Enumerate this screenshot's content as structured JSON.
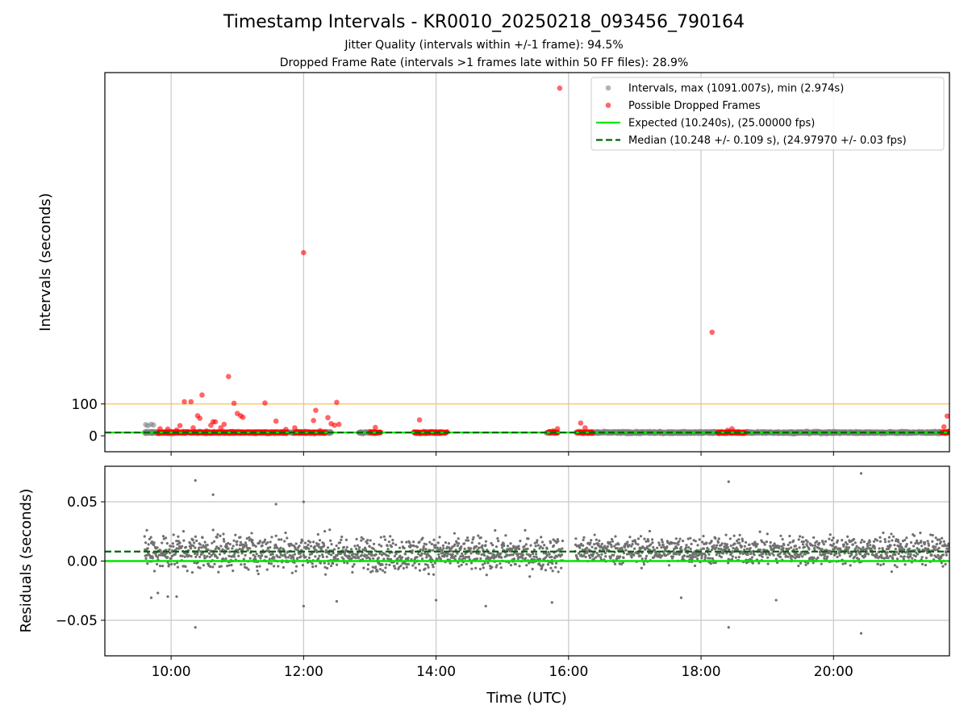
{
  "figure": {
    "title": "Timestamp Intervals - KR0010_20250218_093456_790164",
    "subtitle_1": "Jitter Quality (intervals within +/-1 frame): 94.5%",
    "subtitle_2": "Dropped Frame Rate (intervals >1 frames late within 50 FF files): 28.9%"
  },
  "colors": {
    "intervals": "#808080",
    "dropped": "#ff0000",
    "expected": "#00e600",
    "median": "#006400",
    "threshold": "#ffc04d",
    "grid": "#cccccc",
    "residual_points": "#707070"
  },
  "chart_data": [
    {
      "type": "scatter",
      "panel": "top",
      "title": "",
      "xlabel": "",
      "ylabel": "Intervals (seconds)",
      "xlim": [
        "09:00",
        "21:45"
      ],
      "ylim": [
        -50,
        1140
      ],
      "x_ticks": [
        "10:00",
        "12:00",
        "14:00",
        "16:00",
        "18:00",
        "20:00"
      ],
      "y_ticks": [
        0,
        100
      ],
      "grid": "x",
      "legend_position": "top-right",
      "legend": [
        "Intervals, max (1091.007s), min (2.974s)",
        "Possible Dropped Frames",
        "Expected (10.240s), (25.00000 fps)",
        "Median (10.248 +/- 0.109 s), (24.97970 +/- 0.03 fps)"
      ],
      "expected_interval": 10.24,
      "median_interval": 10.248,
      "threshold_line": 100,
      "interval_max": 1091.007,
      "interval_min": 2.974,
      "series": [
        {
          "name": "Intervals, max (1091.007s), min (2.974s)",
          "style": "scatter",
          "segments": [
            [
              "09:36",
              "12:25"
            ],
            [
              "12:50",
              "13:05"
            ],
            [
              "13:40",
              "14:05"
            ],
            [
              "15:40",
              "15:50"
            ],
            [
              "16:07",
              "21:45"
            ]
          ],
          "typical_value": 10.25,
          "points": [
            [
              "09:37",
              35
            ],
            [
              "09:39",
              32
            ],
            [
              "09:42",
              36
            ],
            [
              "09:44",
              34
            ]
          ]
        },
        {
          "name": "Possible Dropped Frames",
          "style": "scatter",
          "clusters": [
            [
              "09:48",
              "11:45"
            ],
            [
              "11:52",
              "12:20"
            ],
            [
              "13:00",
              "13:10"
            ],
            [
              "13:40",
              "14:10"
            ],
            [
              "15:42",
              "15:50"
            ],
            [
              "16:08",
              "16:22"
            ],
            [
              "18:15",
              "18:40"
            ],
            [
              "21:38",
              "21:45"
            ]
          ],
          "cluster_value": 10.5,
          "points": [
            [
              "09:50",
              22
            ],
            [
              "09:57",
              21
            ],
            [
              "10:05",
              18
            ],
            [
              "10:08",
              32
            ],
            [
              "10:12",
              107
            ],
            [
              "10:18",
              107
            ],
            [
              "10:20",
              25
            ],
            [
              "10:24",
              63
            ],
            [
              "10:26",
              55
            ],
            [
              "10:28",
              128
            ],
            [
              "10:32",
              15
            ],
            [
              "10:36",
              33
            ],
            [
              "10:38",
              44
            ],
            [
              "10:40",
              44
            ],
            [
              "10:45",
              25
            ],
            [
              "10:48",
              36
            ],
            [
              "10:52",
              186
            ],
            [
              "10:57",
              102
            ],
            [
              "11:00",
              70
            ],
            [
              "11:03",
              63
            ],
            [
              "11:05",
              58
            ],
            [
              "11:25",
              103
            ],
            [
              "11:35",
              46
            ],
            [
              "11:44",
              20
            ],
            [
              "11:52",
              25
            ],
            [
              "12:00",
              575
            ],
            [
              "12:09",
              48
            ],
            [
              "12:11",
              80
            ],
            [
              "12:15",
              16
            ],
            [
              "12:22",
              57
            ],
            [
              "12:25",
              38
            ],
            [
              "12:28",
              33
            ],
            [
              "12:30",
              105
            ],
            [
              "12:32",
              36
            ],
            [
              "13:05",
              26
            ],
            [
              "13:45",
              50
            ],
            [
              "15:46",
              15
            ],
            [
              "15:50",
              22
            ],
            [
              "15:52",
              1091
            ],
            [
              "16:11",
              40
            ],
            [
              "16:15",
              25
            ],
            [
              "18:10",
              325
            ],
            [
              "18:24",
              17
            ],
            [
              "18:28",
              22
            ],
            [
              "21:40",
              28
            ],
            [
              "21:43",
              62
            ]
          ]
        },
        {
          "name": "Expected (10.240s), (25.00000 fps)",
          "style": "line",
          "values": [
            10.24,
            10.24
          ]
        },
        {
          "name": "Median (10.248 +/- 0.109 s), (24.97970 +/- 0.03 fps)",
          "style": "dashed-line",
          "values": [
            10.248,
            10.248
          ]
        }
      ]
    },
    {
      "type": "scatter",
      "panel": "bottom",
      "title": "",
      "xlabel": "Time (UTC)",
      "ylabel": "Residuals (seconds)",
      "xlim": [
        "09:00",
        "21:45"
      ],
      "ylim": [
        -0.08,
        0.08
      ],
      "x_ticks": [
        "10:00",
        "12:00",
        "14:00",
        "16:00",
        "18:00",
        "20:00"
      ],
      "y_ticks": [
        "−0.05",
        "0.00",
        "0.05"
      ],
      "y_tick_values": [
        -0.05,
        0.0,
        0.05
      ],
      "grid": "both",
      "expected_residual": 0.0,
      "median_residual": 0.008,
      "series": [
        {
          "name": "",
          "style": "scatter",
          "segments": [
            {
              "start": "09:36",
              "end": "12:25",
              "center": 0.008,
              "spread": 0.014
            },
            {
              "start": "12:25",
              "end": "15:55",
              "center": 0.006,
              "spread": 0.013
            },
            {
              "start": "16:06",
              "end": "21:45",
              "center": 0.009,
              "spread": 0.011
            }
          ],
          "outliers": [
            [
              "09:38",
              0.026
            ],
            [
              "09:42",
              -0.031
            ],
            [
              "09:48",
              -0.027
            ],
            [
              "09:57",
              -0.03
            ],
            [
              "10:05",
              -0.03
            ],
            [
              "10:22",
              0.068
            ],
            [
              "10:22",
              -0.056
            ],
            [
              "10:38",
              0.056
            ],
            [
              "11:35",
              0.048
            ],
            [
              "12:00",
              0.05
            ],
            [
              "12:00",
              -0.038
            ],
            [
              "12:30",
              -0.034
            ],
            [
              "14:00",
              -0.033
            ],
            [
              "14:45",
              -0.038
            ],
            [
              "15:45",
              -0.035
            ],
            [
              "17:42",
              -0.031
            ],
            [
              "18:25",
              0.067
            ],
            [
              "18:25",
              -0.056
            ],
            [
              "19:08",
              -0.033
            ],
            [
              "20:25",
              0.074
            ],
            [
              "20:25",
              -0.061
            ]
          ]
        },
        {
          "name": "Expected",
          "style": "line",
          "values": [
            0.0,
            0.0
          ]
        },
        {
          "name": "Median",
          "style": "dashed-line",
          "values": [
            0.008,
            0.008
          ]
        }
      ]
    }
  ]
}
